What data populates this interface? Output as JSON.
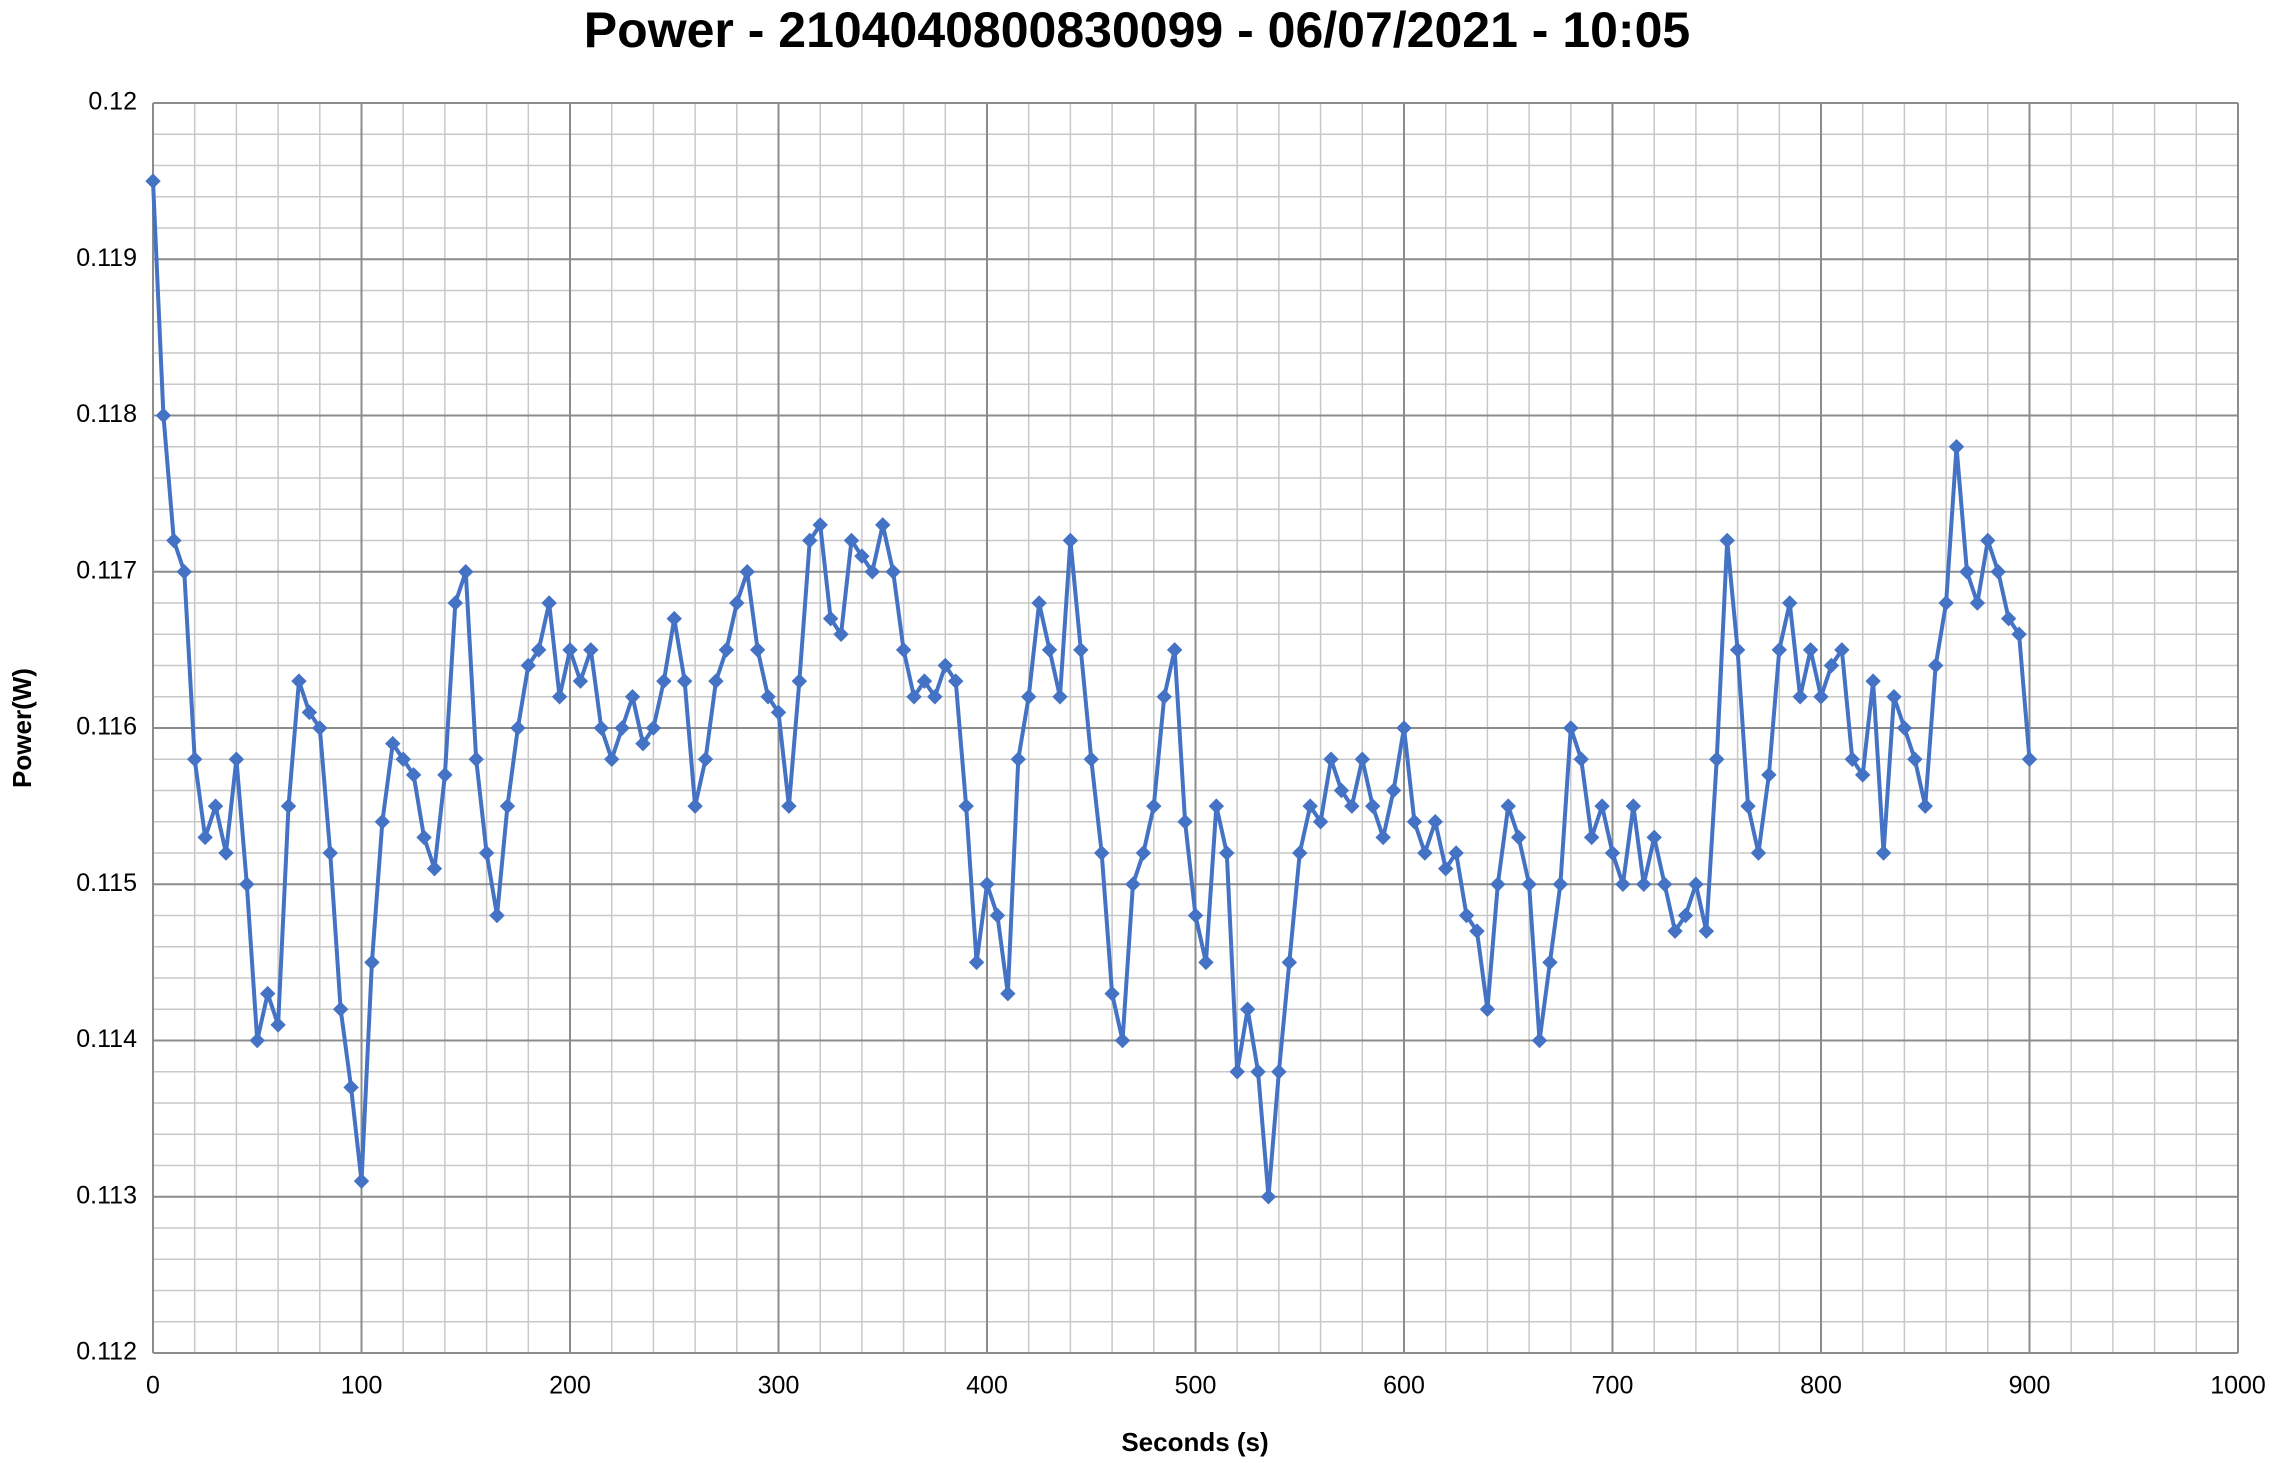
{
  "chart_data": {
    "type": "line",
    "title": "Power - 2104040800830099 - 06/07/2021 - 10:05",
    "x_label": "Seconds (s)",
    "y_label": "Power(W)",
    "color": "#4472c4",
    "markers": "diamond",
    "grid": true,
    "minor_grid": true,
    "xlim": [
      0,
      1000
    ],
    "xticks": [
      0,
      100,
      200,
      300,
      400,
      500,
      600,
      700,
      800,
      900,
      1000
    ],
    "ylim": [
      0.112,
      0.12
    ],
    "yticks": [
      0.112,
      0.113,
      0.114,
      0.115,
      0.116,
      0.117,
      0.118,
      0.119,
      0.12
    ],
    "x": [
      0,
      5,
      10,
      15,
      20,
      25,
      30,
      35,
      40,
      45,
      50,
      55,
      60,
      65,
      70,
      75,
      80,
      85,
      90,
      95,
      100,
      105,
      110,
      115,
      120,
      125,
      130,
      135,
      140,
      145,
      150,
      155,
      160,
      165,
      170,
      175,
      180,
      185,
      190,
      195,
      200,
      205,
      210,
      215,
      220,
      225,
      230,
      235,
      240,
      245,
      250,
      255,
      260,
      265,
      270,
      275,
      280,
      285,
      290,
      295,
      300,
      305,
      310,
      315,
      320,
      325,
      330,
      335,
      340,
      345,
      350,
      355,
      360,
      365,
      370,
      375,
      380,
      385,
      390,
      395,
      400,
      405,
      410,
      415,
      420,
      425,
      430,
      435,
      440,
      445,
      450,
      455,
      460,
      465,
      470,
      475,
      480,
      485,
      490,
      495,
      500,
      505,
      510,
      515,
      520,
      525,
      530,
      535,
      540,
      545,
      550,
      555,
      560,
      565,
      570,
      575,
      580,
      585,
      590,
      595,
      600,
      605,
      610,
      615,
      620,
      625,
      630,
      635,
      640,
      645,
      650,
      655,
      660,
      665,
      670,
      675,
      680,
      685,
      690,
      695,
      700,
      705,
      710,
      715,
      720,
      725,
      730,
      735,
      740,
      745,
      750,
      755,
      760,
      765,
      770,
      775,
      780,
      785,
      790,
      795,
      800,
      805,
      810,
      815,
      820,
      825,
      830,
      835,
      840,
      845,
      850,
      855,
      860,
      865,
      870,
      875,
      880,
      885,
      890,
      895,
      900
    ],
    "values": [
      0.1195,
      0.118,
      0.1172,
      0.117,
      0.1158,
      0.1153,
      0.1155,
      0.1152,
      0.1158,
      0.115,
      0.114,
      0.1143,
      0.1141,
      0.1155,
      0.1163,
      0.1161,
      0.116,
      0.1152,
      0.1142,
      0.1137,
      0.1131,
      0.1145,
      0.1154,
      0.1159,
      0.1158,
      0.1157,
      0.1153,
      0.1151,
      0.1157,
      0.1168,
      0.117,
      0.1158,
      0.1152,
      0.1148,
      0.1155,
      0.116,
      0.1164,
      0.1165,
      0.1168,
      0.1162,
      0.1165,
      0.1163,
      0.1165,
      0.116,
      0.1158,
      0.116,
      0.1162,
      0.1159,
      0.116,
      0.1163,
      0.1167,
      0.1163,
      0.1155,
      0.1158,
      0.1163,
      0.1165,
      0.1168,
      0.117,
      0.1165,
      0.1162,
      0.1161,
      0.1155,
      0.1163,
      0.1172,
      0.1173,
      0.1167,
      0.1166,
      0.1172,
      0.1171,
      0.117,
      0.1173,
      0.117,
      0.1165,
      0.1162,
      0.1163,
      0.1162,
      0.1164,
      0.1163,
      0.1155,
      0.1145,
      0.115,
      0.1148,
      0.1143,
      0.1158,
      0.1162,
      0.1168,
      0.1165,
      0.1162,
      0.1172,
      0.1165,
      0.1158,
      0.1152,
      0.1143,
      0.114,
      0.115,
      0.1152,
      0.1155,
      0.1162,
      0.1165,
      0.1154,
      0.1148,
      0.1145,
      0.1155,
      0.1152,
      0.1138,
      0.1142,
      0.1138,
      0.113,
      0.1138,
      0.1145,
      0.1152,
      0.1155,
      0.1154,
      0.1158,
      0.1156,
      0.1155,
      0.1158,
      0.1155,
      0.1153,
      0.1156,
      0.116,
      0.1154,
      0.1152,
      0.1154,
      0.1151,
      0.1152,
      0.1148,
      0.1147,
      0.1142,
      0.115,
      0.1155,
      0.1153,
      0.115,
      0.114,
      0.1145,
      0.115,
      0.116,
      0.1158,
      0.1153,
      0.1155,
      0.1152,
      0.115,
      0.1155,
      0.115,
      0.1153,
      0.115,
      0.1147,
      0.1148,
      0.115,
      0.1147,
      0.1158,
      0.1172,
      0.1165,
      0.1155,
      0.1152,
      0.1157,
      0.1165,
      0.1168,
      0.1162,
      0.1165,
      0.1162,
      0.1164,
      0.1165,
      0.1158,
      0.1157,
      0.1163,
      0.1152,
      0.1162,
      0.116,
      0.1158,
      0.1155,
      0.1164,
      0.1168,
      0.1178,
      0.117,
      0.1168,
      0.1172,
      0.117,
      0.1167,
      0.1166,
      0.1158
    ]
  }
}
